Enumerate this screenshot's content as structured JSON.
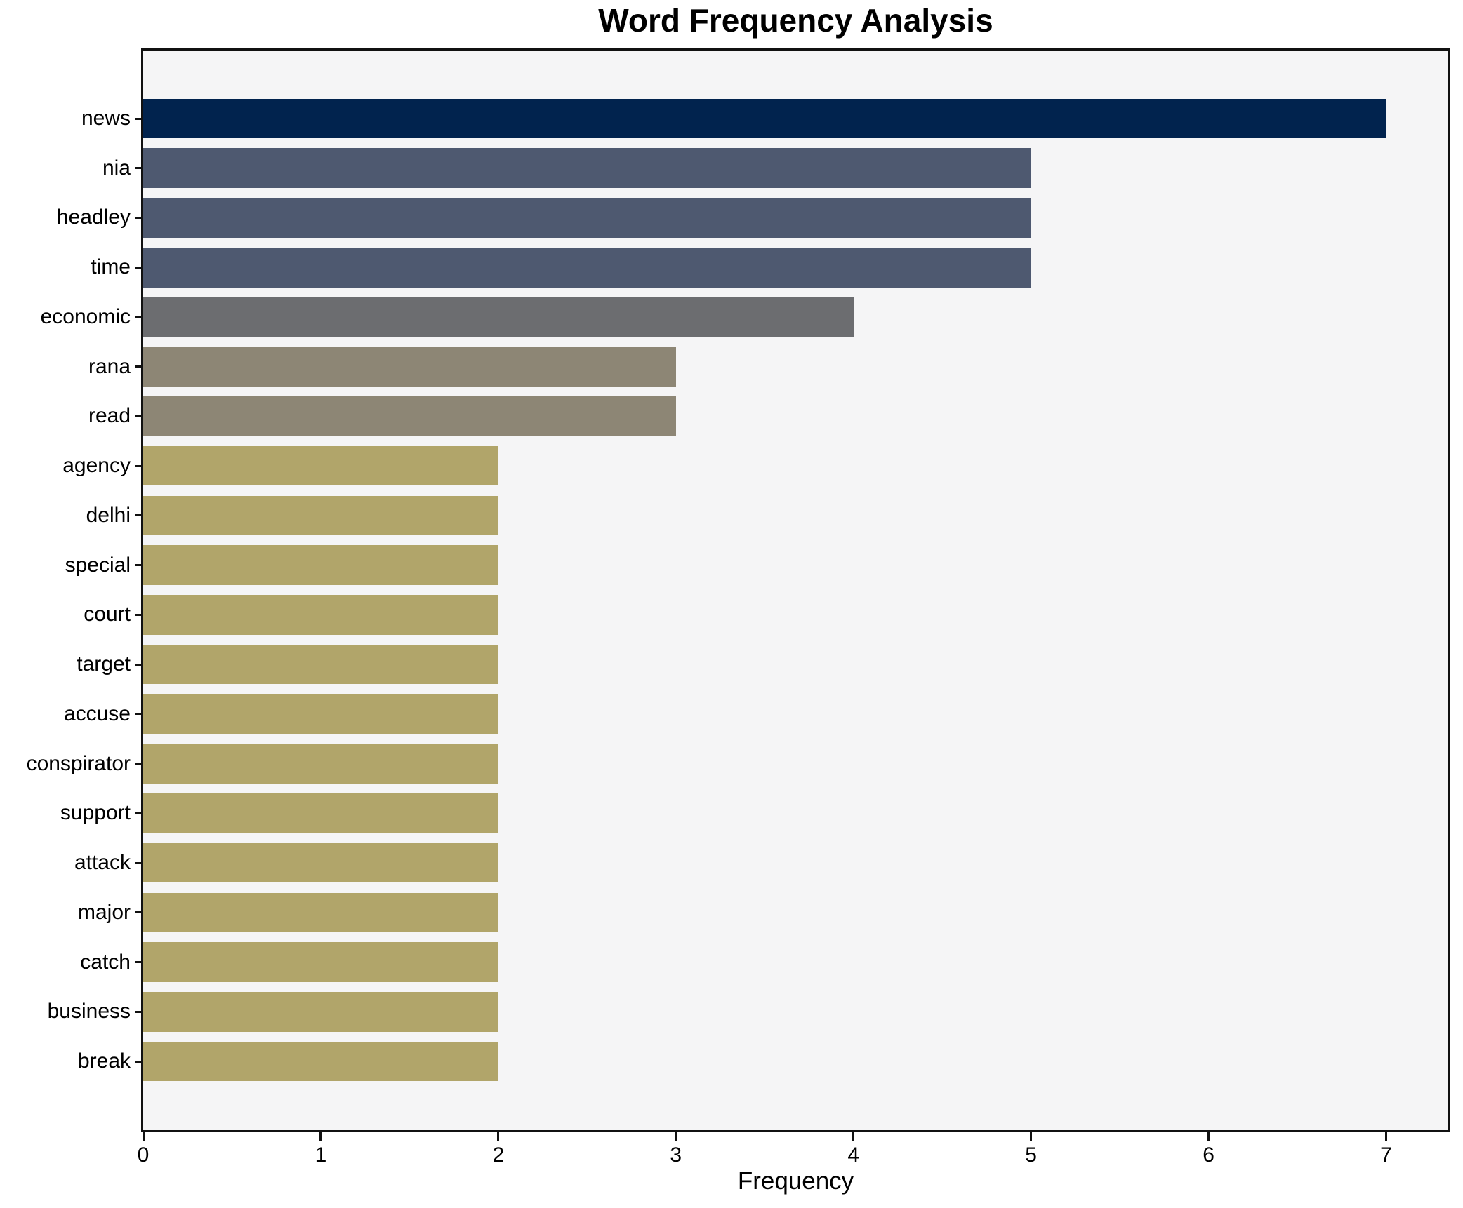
{
  "chart_data": {
    "type": "bar",
    "orientation": "horizontal",
    "title": "Word Frequency Analysis",
    "xlabel": "Frequency",
    "ylabel": "",
    "categories": [
      "news",
      "nia",
      "headley",
      "time",
      "economic",
      "rana",
      "read",
      "agency",
      "delhi",
      "special",
      "court",
      "target",
      "accuse",
      "conspirator",
      "support",
      "attack",
      "major",
      "catch",
      "business",
      "break"
    ],
    "values": [
      7,
      5,
      5,
      5,
      4,
      3,
      3,
      2,
      2,
      2,
      2,
      2,
      2,
      2,
      2,
      2,
      2,
      2,
      2,
      2
    ],
    "xticks": [
      0,
      1,
      2,
      3,
      4,
      5,
      6,
      7
    ],
    "xlim": [
      0,
      7.35
    ],
    "grid": false,
    "legend": null,
    "bar_colors_by_value": {
      "7": "#01234e",
      "5": "#4e5970",
      "4": "#6c6d70",
      "3": "#8d8675",
      "2": "#b1a56a"
    },
    "plot_background": "#f5f5f6",
    "figure_background": "#ffffff",
    "axis_color": "#111111",
    "text_color": "#000000"
  }
}
